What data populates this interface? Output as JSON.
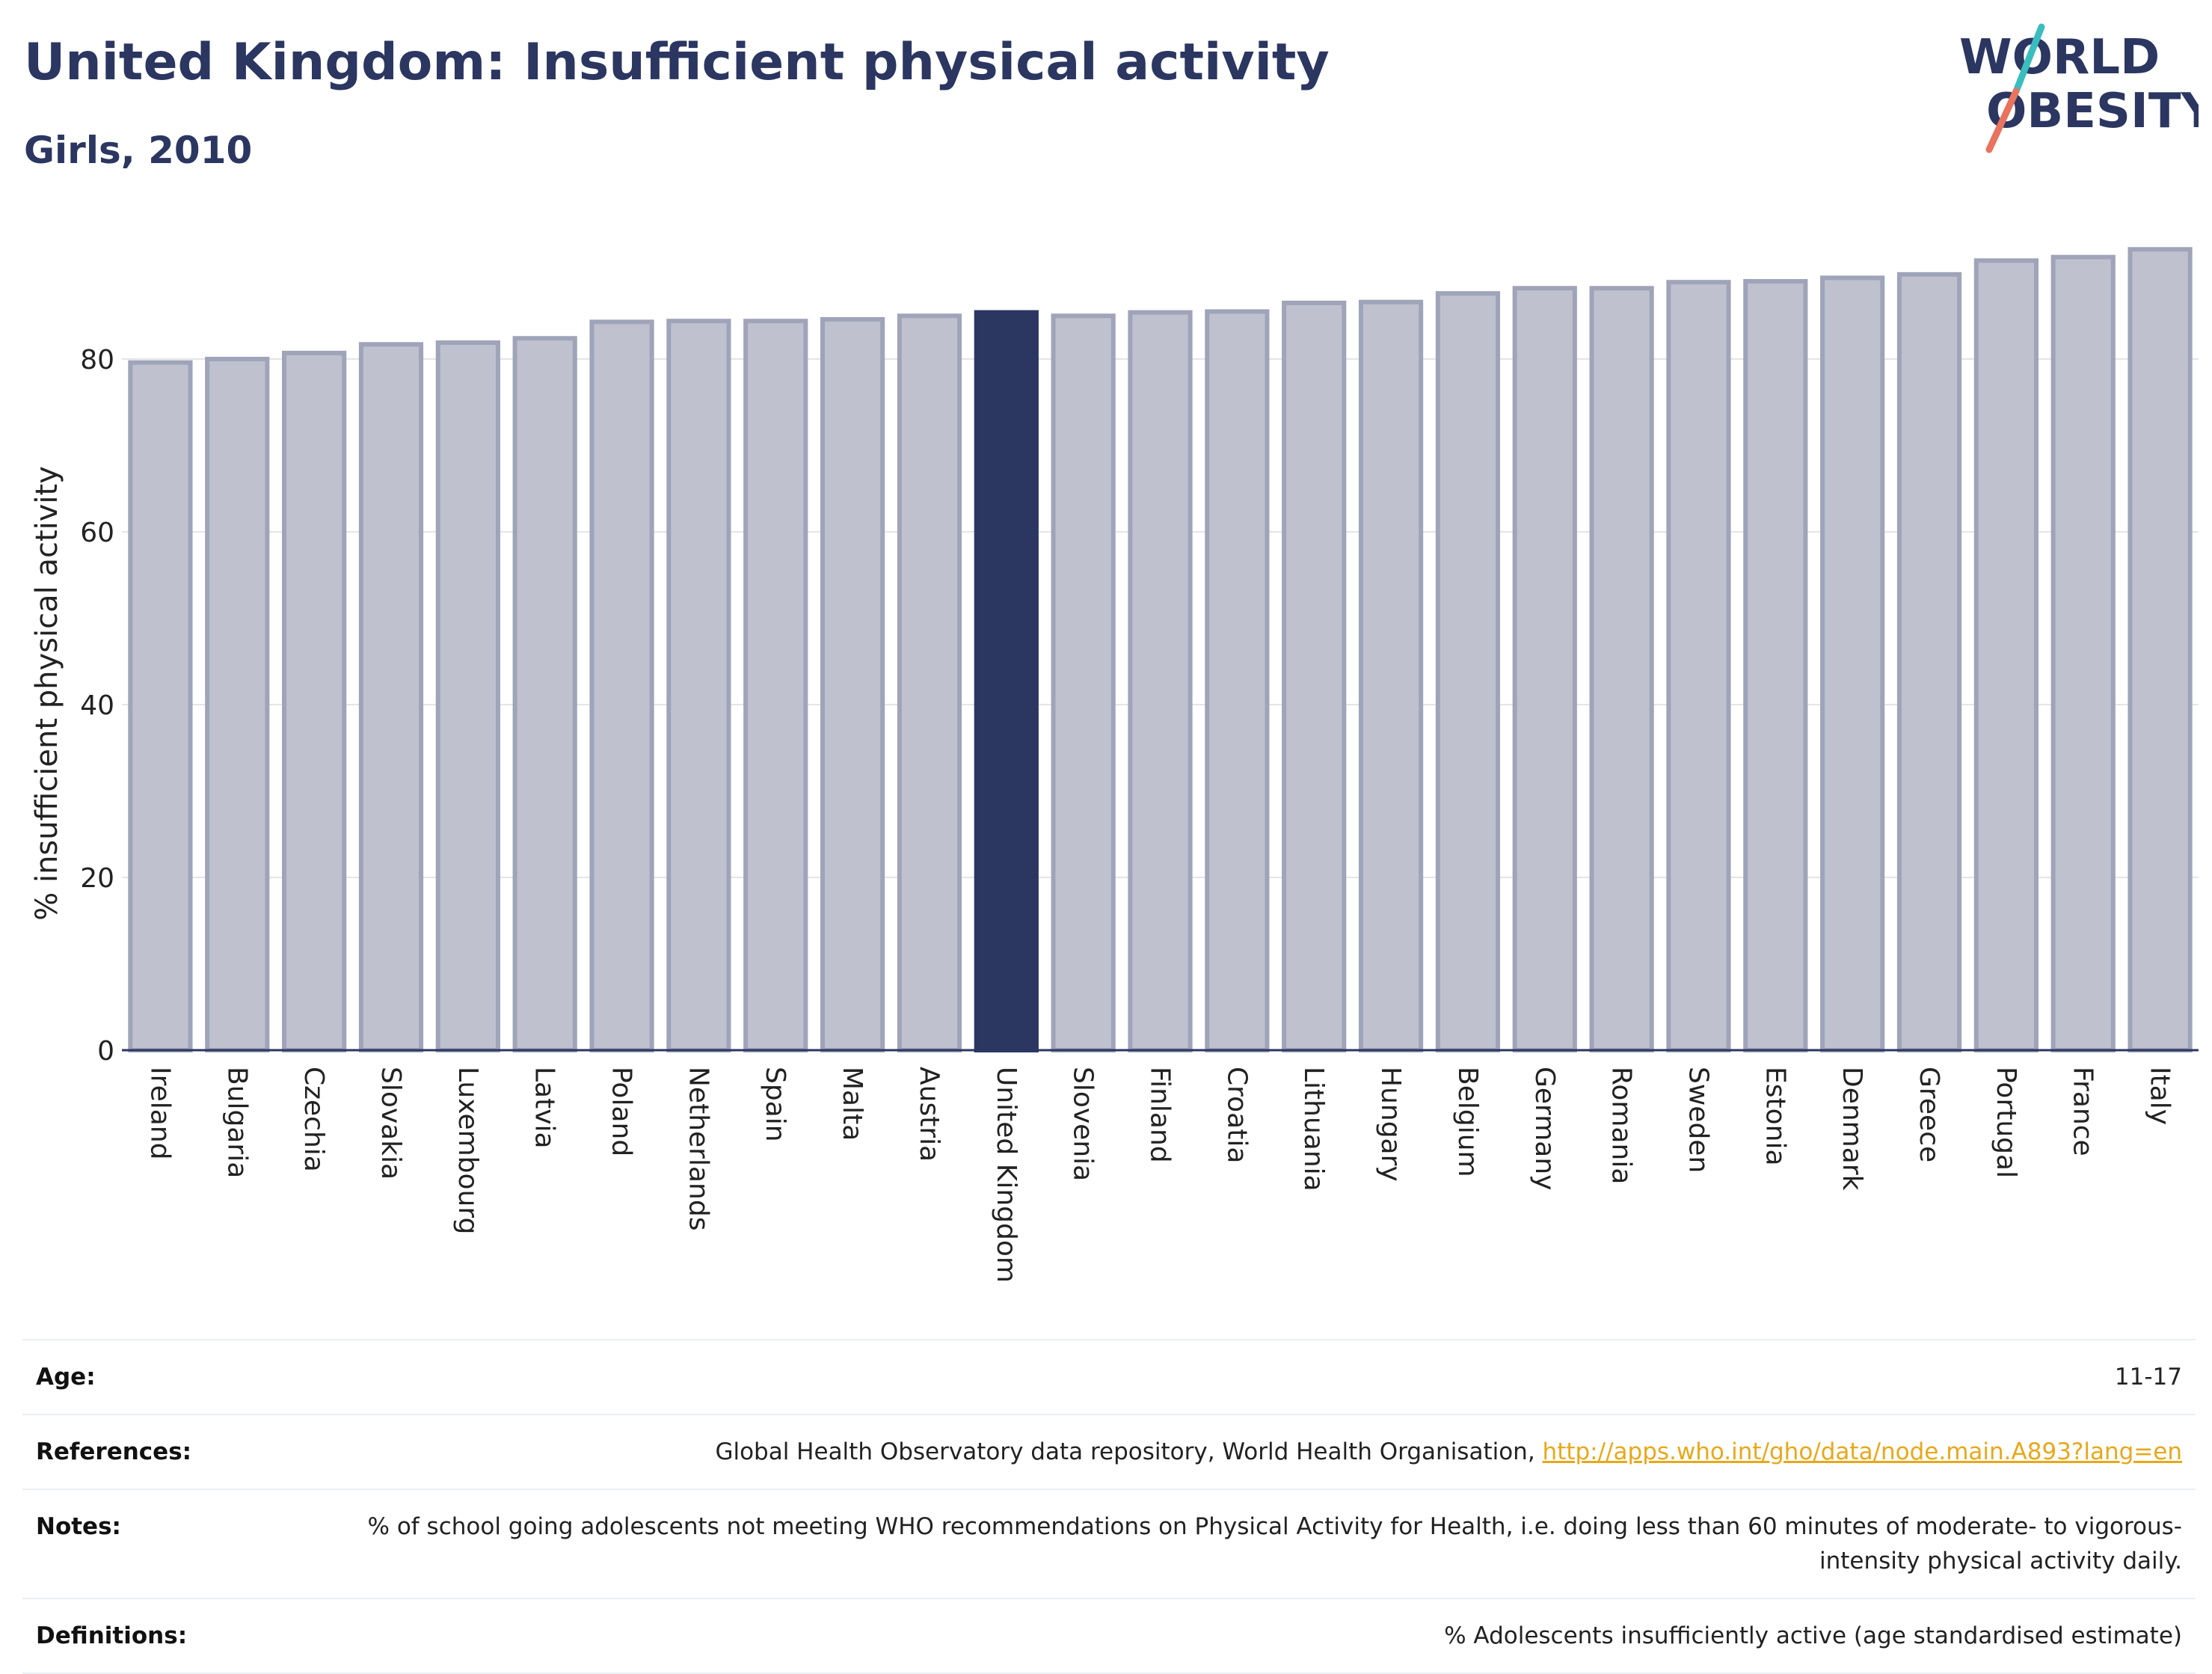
{
  "header": {
    "title": "United Kingdom: Insufficient physical activity",
    "subtitle": "Girls, 2010"
  },
  "logo": {
    "line1": "WORLD",
    "line2": "OBESITY"
  },
  "colors": {
    "highlight": "#2b3661",
    "bar_fill": "#bfc1cf",
    "bar_stroke": "#a0a4b9",
    "grid": "#e5e5e5",
    "logo_teal": "#3bbdbf",
    "logo_coral": "#e8735f"
  },
  "chart_data": {
    "type": "bar",
    "title": "United Kingdom: Insufficient physical activity",
    "subtitle": "Girls, 2010",
    "ylabel": "% insufficient physical activity",
    "xlabel": "",
    "ylim": [
      0,
      93
    ],
    "yticks": [
      0,
      20,
      40,
      60,
      80
    ],
    "grid": true,
    "highlight": "United Kingdom",
    "categories": [
      "Ireland",
      "Bulgaria",
      "Czechia",
      "Slovakia",
      "Luxembourg",
      "Latvia",
      "Poland",
      "Netherlands",
      "Spain",
      "Malta",
      "Austria",
      "United Kingdom",
      "Slovenia",
      "Finland",
      "Croatia",
      "Lithuania",
      "Hungary",
      "Belgium",
      "Germany",
      "Romania",
      "Sweden",
      "Estonia",
      "Denmark",
      "Greece",
      "Portugal",
      "France",
      "Italy"
    ],
    "values": [
      79.6,
      80.0,
      80.7,
      81.7,
      81.9,
      82.4,
      84.3,
      84.4,
      84.4,
      84.6,
      85.0,
      85.4,
      85.0,
      85.4,
      85.5,
      86.5,
      86.6,
      87.6,
      88.2,
      88.2,
      88.9,
      89.0,
      89.4,
      89.8,
      91.4,
      91.8,
      92.7
    ]
  },
  "meta": {
    "age": {
      "label": "Age:",
      "value": "11-17"
    },
    "references": {
      "label": "References:",
      "text": "Global Health Observatory data repository, World Health Organisation, ",
      "link": "http://apps.who.int/gho/data/node.main.A893?lang=en"
    },
    "notes": {
      "label": "Notes:",
      "value": "% of school going adolescents not meeting WHO recommendations on Physical Activity for Health, i.e. doing less than 60 minutes of moderate- to vigorous-intensity physical activity daily."
    },
    "definitions": {
      "label": "Definitions:",
      "value": "% Adolescents insufficiently active (age standardised estimate)"
    }
  }
}
